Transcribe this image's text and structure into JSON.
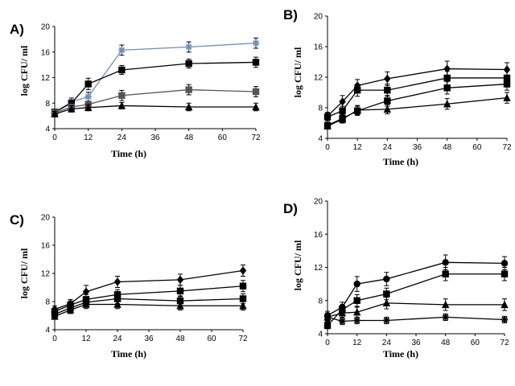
{
  "chart_data": [
    {
      "panel": "A)",
      "type": "line",
      "xlabel": "Time (h)",
      "ylabel": "log CFU/ ml",
      "xticks": [
        0,
        12,
        24,
        36,
        48,
        60,
        72
      ],
      "yticks": [
        4,
        8,
        12,
        16,
        20
      ],
      "xlim": [
        0,
        72
      ],
      "ylim": [
        4,
        20
      ],
      "series": [
        {
          "marker": "star",
          "color": "#6e8fb6",
          "x": [
            0,
            6,
            12,
            24,
            48,
            72
          ],
          "y": [
            6.6,
            8.2,
            9.0,
            16.3,
            16.8,
            17.4
          ],
          "err": [
            0.4,
            0.6,
            0.7,
            0.8,
            0.8,
            0.8
          ]
        },
        {
          "marker": "square",
          "color": "#000000",
          "x": [
            0,
            6,
            12,
            24,
            48,
            72
          ],
          "y": [
            6.6,
            8.0,
            11.0,
            13.2,
            14.2,
            14.4
          ],
          "err": [
            0.4,
            0.5,
            0.9,
            0.7,
            0.7,
            0.8
          ]
        },
        {
          "marker": "square",
          "color": "#555555",
          "x": [
            0,
            6,
            12,
            24,
            48,
            72
          ],
          "y": [
            6.5,
            7.4,
            7.8,
            9.2,
            10.1,
            9.8
          ],
          "err": [
            0.4,
            0.5,
            0.5,
            0.8,
            0.8,
            0.8
          ]
        },
        {
          "marker": "triangle",
          "color": "#000000",
          "x": [
            0,
            6,
            12,
            24,
            48,
            72
          ],
          "y": [
            6.3,
            7.1,
            7.3,
            7.6,
            7.4,
            7.4
          ],
          "err": [
            0.4,
            0.5,
            0.5,
            0.5,
            0.6,
            0.6
          ]
        }
      ]
    },
    {
      "panel": "B)",
      "type": "line",
      "xlabel": "Time (h)",
      "ylabel": "log CFU/ ml",
      "xticks": [
        0,
        12,
        24,
        36,
        48,
        60,
        72
      ],
      "yticks": [
        4,
        8,
        12,
        16,
        20
      ],
      "xlim": [
        0,
        72
      ],
      "ylim": [
        4,
        20
      ],
      "series": [
        {
          "marker": "diamond",
          "color": "#000000",
          "x": [
            0,
            6,
            12,
            24,
            48,
            72
          ],
          "y": [
            6.9,
            8.8,
            10.9,
            11.8,
            13.1,
            13.0
          ],
          "err": [
            0.5,
            0.8,
            0.8,
            0.9,
            1.0,
            0.9
          ]
        },
        {
          "marker": "square",
          "color": "#000000",
          "x": [
            0,
            6,
            12,
            24,
            48,
            72
          ],
          "y": [
            6.8,
            7.6,
            10.3,
            10.3,
            11.9,
            11.9
          ],
          "err": [
            0.5,
            0.6,
            0.8,
            0.8,
            0.9,
            0.9
          ]
        },
        {
          "marker": "square",
          "color": "#000000",
          "x": [
            0,
            6,
            12,
            24,
            48,
            72
          ],
          "y": [
            5.7,
            6.6,
            7.6,
            8.9,
            10.6,
            11.1
          ],
          "err": [
            0.4,
            0.5,
            0.6,
            0.7,
            0.8,
            0.8
          ]
        },
        {
          "marker": "triangle",
          "color": "#000000",
          "x": [
            0,
            6,
            12,
            24,
            48,
            72
          ],
          "y": [
            5.6,
            6.5,
            7.7,
            7.8,
            8.5,
            9.3
          ],
          "err": [
            0.4,
            0.5,
            0.6,
            0.6,
            0.7,
            0.7
          ]
        }
      ]
    },
    {
      "panel": "C)",
      "type": "line",
      "xlabel": "Time (h)",
      "ylabel": "log CFU/ ml",
      "xticks": [
        0,
        12,
        24,
        36,
        48,
        60,
        72
      ],
      "yticks": [
        4,
        8,
        12,
        16,
        20
      ],
      "xlim": [
        0,
        72
      ],
      "ylim": [
        4,
        20
      ],
      "series": [
        {
          "marker": "diamond",
          "color": "#000000",
          "x": [
            0,
            6,
            12,
            24,
            48,
            72
          ],
          "y": [
            6.9,
            7.7,
            9.4,
            10.8,
            11.1,
            12.4
          ],
          "err": [
            0.5,
            0.6,
            0.9,
            0.8,
            0.8,
            0.8
          ]
        },
        {
          "marker": "square",
          "color": "#000000",
          "x": [
            0,
            6,
            12,
            24,
            48,
            72
          ],
          "y": [
            6.6,
            7.5,
            8.3,
            9.0,
            9.5,
            10.2
          ],
          "err": [
            0.5,
            0.6,
            0.7,
            0.7,
            0.8,
            0.8
          ]
        },
        {
          "marker": "square",
          "color": "#000000",
          "x": [
            0,
            6,
            12,
            24,
            48,
            72
          ],
          "y": [
            6.2,
            7.1,
            7.9,
            8.4,
            8.1,
            8.4
          ],
          "err": [
            0.5,
            0.5,
            0.6,
            0.7,
            0.7,
            0.7
          ]
        },
        {
          "marker": "triangle",
          "color": "#000000",
          "x": [
            0,
            6,
            12,
            24,
            48,
            72
          ],
          "y": [
            5.9,
            6.8,
            7.6,
            7.6,
            7.4,
            7.4
          ],
          "err": [
            0.4,
            0.5,
            0.6,
            0.6,
            0.6,
            0.6
          ]
        }
      ]
    },
    {
      "panel": "D)",
      "type": "line",
      "xlabel": "Time (h)",
      "ylabel": "log CFU/ ml",
      "xticks": [
        0,
        12,
        24,
        36,
        48,
        60,
        72
      ],
      "yticks": [
        4,
        8,
        12,
        16,
        20
      ],
      "xlim": [
        0,
        72
      ],
      "ylim": [
        4,
        20
      ],
      "series": [
        {
          "marker": "circle",
          "color": "#000000",
          "x": [
            0,
            6,
            12,
            24,
            48,
            72
          ],
          "y": [
            6.2,
            7.2,
            10.0,
            10.6,
            12.6,
            12.5
          ],
          "err": [
            0.5,
            0.6,
            0.9,
            0.8,
            0.9,
            0.8
          ]
        },
        {
          "marker": "square",
          "color": "#000000",
          "x": [
            0,
            6,
            12,
            24,
            48,
            72
          ],
          "y": [
            5.0,
            6.9,
            8.0,
            8.8,
            11.2,
            11.2
          ],
          "err": [
            0.4,
            0.5,
            0.7,
            0.7,
            0.8,
            0.8
          ]
        },
        {
          "marker": "triangle",
          "color": "#000000",
          "x": [
            0,
            6,
            12,
            24,
            48,
            72
          ],
          "y": [
            6.0,
            6.5,
            6.6,
            7.7,
            7.5,
            7.5
          ],
          "err": [
            0.5,
            0.5,
            0.6,
            0.7,
            0.7,
            0.7
          ]
        },
        {
          "marker": "star",
          "color": "#000000",
          "x": [
            0,
            6,
            12,
            24,
            48,
            72
          ],
          "y": [
            6.0,
            5.5,
            5.6,
            5.6,
            6.0,
            5.7
          ],
          "err": [
            0.4,
            0.4,
            0.4,
            0.4,
            0.4,
            0.4
          ]
        }
      ]
    }
  ]
}
